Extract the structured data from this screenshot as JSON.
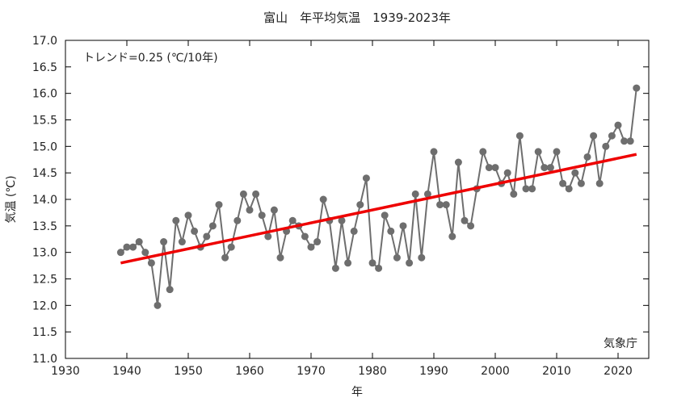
{
  "chart_data": {
    "type": "line",
    "title": "富山　年平均気温　1939-2023年",
    "xlabel": "年",
    "ylabel": "気温 (℃)",
    "xlim": [
      1930,
      2025
    ],
    "ylim": [
      11.0,
      17.0
    ],
    "xticks": [
      "1930",
      "1940",
      "1950",
      "1960",
      "1970",
      "1980",
      "1990",
      "2000",
      "2010",
      "2020"
    ],
    "yticks": [
      "11.0",
      "11.5",
      "12.0",
      "12.5",
      "13.0",
      "13.5",
      "14.0",
      "14.5",
      "15.0",
      "15.5",
      "16.0",
      "16.5",
      "17.0"
    ],
    "grid": false,
    "trend_label": "トレンド=0.25 (℃/10年)",
    "source_label": "気象庁",
    "series": [
      {
        "color": "#6e6e6e",
        "x": [
          1939,
          1940,
          1941,
          1942,
          1943,
          1944,
          1945,
          1946,
          1947,
          1948,
          1949,
          1950,
          1951,
          1952,
          1953,
          1954,
          1955,
          1956,
          1957,
          1958,
          1959,
          1960,
          1961,
          1962,
          1963,
          1964,
          1965,
          1966,
          1967,
          1968,
          1969,
          1970,
          1971,
          1972,
          1973,
          1974,
          1975,
          1976,
          1977,
          1978,
          1979,
          1980,
          1981,
          1982,
          1983,
          1984,
          1985,
          1986,
          1987,
          1988,
          1989,
          1990,
          1991,
          1992,
          1993,
          1994,
          1995,
          1996,
          1997,
          1998,
          1999,
          2000,
          2001,
          2002,
          2003,
          2004,
          2005,
          2006,
          2007,
          2008,
          2009,
          2010,
          2011,
          2012,
          2013,
          2014,
          2015,
          2016,
          2017,
          2018,
          2019,
          2020,
          2021,
          2022,
          2023
        ],
        "values": [
          13.0,
          13.1,
          13.1,
          13.2,
          13.0,
          12.8,
          12.0,
          13.2,
          12.3,
          13.6,
          13.2,
          13.7,
          13.4,
          13.1,
          13.3,
          13.5,
          13.9,
          12.9,
          13.1,
          13.6,
          14.1,
          13.8,
          14.1,
          13.7,
          13.3,
          13.8,
          12.9,
          13.4,
          13.6,
          13.5,
          13.3,
          13.1,
          13.2,
          14.0,
          13.6,
          12.7,
          13.6,
          12.8,
          13.4,
          13.9,
          14.4,
          12.8,
          12.7,
          13.7,
          13.4,
          12.9,
          13.5,
          12.8,
          14.1,
          12.9,
          14.1,
          14.9,
          13.9,
          13.9,
          13.3,
          14.7,
          13.6,
          13.5,
          14.2,
          14.9,
          14.6,
          14.6,
          14.3,
          14.5,
          14.1,
          15.2,
          14.2,
          14.2,
          14.9,
          14.6,
          14.6,
          14.9,
          14.3,
          14.2,
          14.5,
          14.3,
          14.8,
          15.2,
          14.3,
          15.0,
          15.2,
          15.4,
          15.1,
          15.1,
          16.1
        ]
      }
    ],
    "trend": {
      "color": "#ee0000",
      "x": [
        1939,
        2023
      ],
      "values": [
        12.8,
        14.85
      ]
    }
  }
}
